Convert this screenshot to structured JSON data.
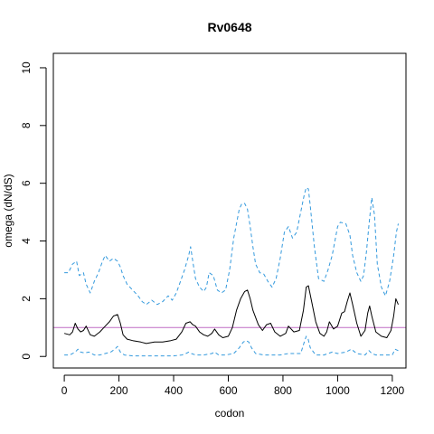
{
  "chart_data": {
    "type": "line",
    "title": "Rv0648",
    "xlabel": "codon",
    "ylabel": "omega (dN/dS)",
    "xlim": [
      -40,
      1250
    ],
    "ylim": [
      -0.4,
      10.5
    ],
    "x_ticks": [
      0,
      200,
      400,
      600,
      800,
      1000,
      1200
    ],
    "y_ticks": [
      0,
      2,
      4,
      6,
      8,
      10
    ],
    "reference_line": {
      "y": 1,
      "color": "#bf6cc4"
    },
    "colors": {
      "median": "#000000",
      "interval": "#3399dd"
    },
    "series": [
      {
        "style": "solid",
        "x": [
          0,
          20,
          30,
          40,
          50,
          60,
          70,
          80,
          95,
          110,
          130,
          150,
          165,
          180,
          195,
          205,
          215,
          230,
          250,
          280,
          300,
          330,
          360,
          390,
          410,
          430,
          445,
          460,
          470,
          480,
          495,
          510,
          525,
          540,
          550,
          565,
          580,
          600,
          615,
          630,
          645,
          660,
          670,
          680,
          690,
          710,
          725,
          740,
          755,
          770,
          790,
          810,
          820,
          840,
          860,
          875,
          885,
          893,
          905,
          920,
          935,
          950,
          960,
          970,
          985,
          1000,
          1015,
          1025,
          1035,
          1045,
          1055,
          1070,
          1085,
          1100,
          1110,
          1117,
          1125,
          1140,
          1160,
          1180,
          1195,
          1205,
          1213,
          1222
        ],
        "values": [
          0.8,
          0.75,
          0.85,
          1.15,
          0.95,
          0.85,
          0.9,
          1.05,
          0.75,
          0.7,
          0.85,
          1.05,
          1.2,
          1.4,
          1.45,
          1.15,
          0.75,
          0.6,
          0.55,
          0.5,
          0.45,
          0.5,
          0.5,
          0.55,
          0.6,
          0.85,
          1.15,
          1.2,
          1.1,
          1.05,
          0.85,
          0.75,
          0.7,
          0.8,
          0.95,
          0.75,
          0.65,
          0.7,
          1.0,
          1.6,
          2.0,
          2.25,
          2.3,
          2.0,
          1.6,
          1.1,
          0.9,
          1.1,
          1.15,
          0.85,
          0.7,
          0.8,
          1.05,
          0.85,
          0.9,
          1.6,
          2.4,
          2.45,
          1.9,
          1.2,
          0.8,
          0.7,
          0.85,
          1.2,
          0.95,
          1.05,
          1.5,
          1.55,
          1.9,
          2.2,
          1.8,
          1.15,
          0.7,
          0.9,
          1.5,
          1.75,
          1.4,
          0.85,
          0.7,
          0.65,
          0.9,
          1.4,
          2.0,
          1.8
        ]
      },
      {
        "style": "dashed",
        "x": [
          0,
          15,
          30,
          45,
          55,
          70,
          80,
          95,
          110,
          125,
          140,
          150,
          165,
          180,
          195,
          205,
          215,
          230,
          250,
          270,
          285,
          300,
          320,
          340,
          360,
          380,
          395,
          410,
          425,
          440,
          455,
          462,
          470,
          480,
          495,
          510,
          520,
          530,
          545,
          560,
          575,
          590,
          605,
          620,
          640,
          650,
          660,
          670,
          680,
          690,
          700,
          715,
          730,
          745,
          760,
          775,
          790,
          805,
          820,
          835,
          850,
          865,
          878,
          885,
          893,
          900,
          915,
          930,
          950,
          965,
          980,
          990,
          1000,
          1010,
          1030,
          1045,
          1055,
          1070,
          1085,
          1095,
          1105,
          1115,
          1125,
          1135,
          1145,
          1160,
          1175,
          1190,
          1205,
          1215,
          1222
        ],
        "values": [
          2.9,
          2.9,
          3.2,
          3.3,
          2.8,
          2.9,
          2.5,
          2.2,
          2.6,
          2.9,
          3.3,
          3.5,
          3.3,
          3.4,
          3.3,
          3.1,
          2.8,
          2.5,
          2.3,
          2.1,
          1.9,
          1.8,
          1.95,
          1.8,
          1.9,
          2.1,
          1.95,
          2.2,
          2.6,
          3.0,
          3.5,
          3.8,
          3.3,
          2.7,
          2.4,
          2.25,
          2.4,
          2.9,
          2.8,
          2.3,
          2.2,
          2.3,
          3.0,
          4.1,
          5.1,
          5.3,
          5.3,
          5.1,
          4.5,
          3.8,
          3.2,
          2.9,
          2.85,
          2.6,
          2.4,
          2.7,
          3.4,
          4.3,
          4.5,
          4.1,
          4.3,
          5.0,
          5.6,
          5.85,
          5.8,
          5.2,
          3.8,
          2.7,
          2.6,
          3.0,
          3.5,
          4.0,
          4.5,
          4.65,
          4.6,
          4.2,
          3.5,
          2.9,
          2.6,
          2.8,
          3.6,
          4.6,
          5.5,
          4.9,
          3.2,
          2.4,
          2.1,
          2.6,
          3.5,
          4.3,
          4.6
        ]
      },
      {
        "style": "dashed",
        "x": [
          0,
          20,
          40,
          50,
          60,
          75,
          90,
          110,
          130,
          150,
          170,
          185,
          195,
          205,
          220,
          250,
          300,
          350,
          400,
          430,
          445,
          455,
          465,
          480,
          510,
          540,
          550,
          565,
          590,
          620,
          640,
          655,
          665,
          675,
          685,
          700,
          730,
          760,
          790,
          820,
          850,
          865,
          878,
          885,
          892,
          900,
          920,
          950,
          965,
          980,
          1000,
          1030,
          1050,
          1070,
          1100,
          1115,
          1125,
          1140,
          1170,
          1200,
          1210,
          1222
        ],
        "values": [
          0.05,
          0.05,
          0.15,
          0.25,
          0.15,
          0.12,
          0.15,
          0.05,
          0.05,
          0.1,
          0.15,
          0.25,
          0.35,
          0.15,
          0.05,
          0.02,
          0.02,
          0.02,
          0.02,
          0.05,
          0.1,
          0.15,
          0.1,
          0.05,
          0.05,
          0.1,
          0.15,
          0.05,
          0.05,
          0.1,
          0.3,
          0.5,
          0.55,
          0.5,
          0.3,
          0.1,
          0.05,
          0.05,
          0.05,
          0.1,
          0.1,
          0.1,
          0.5,
          0.7,
          0.6,
          0.3,
          0.05,
          0.05,
          0.1,
          0.15,
          0.1,
          0.15,
          0.25,
          0.1,
          0.05,
          0.2,
          0.1,
          0.05,
          0.05,
          0.05,
          0.25,
          0.2
        ]
      }
    ]
  }
}
